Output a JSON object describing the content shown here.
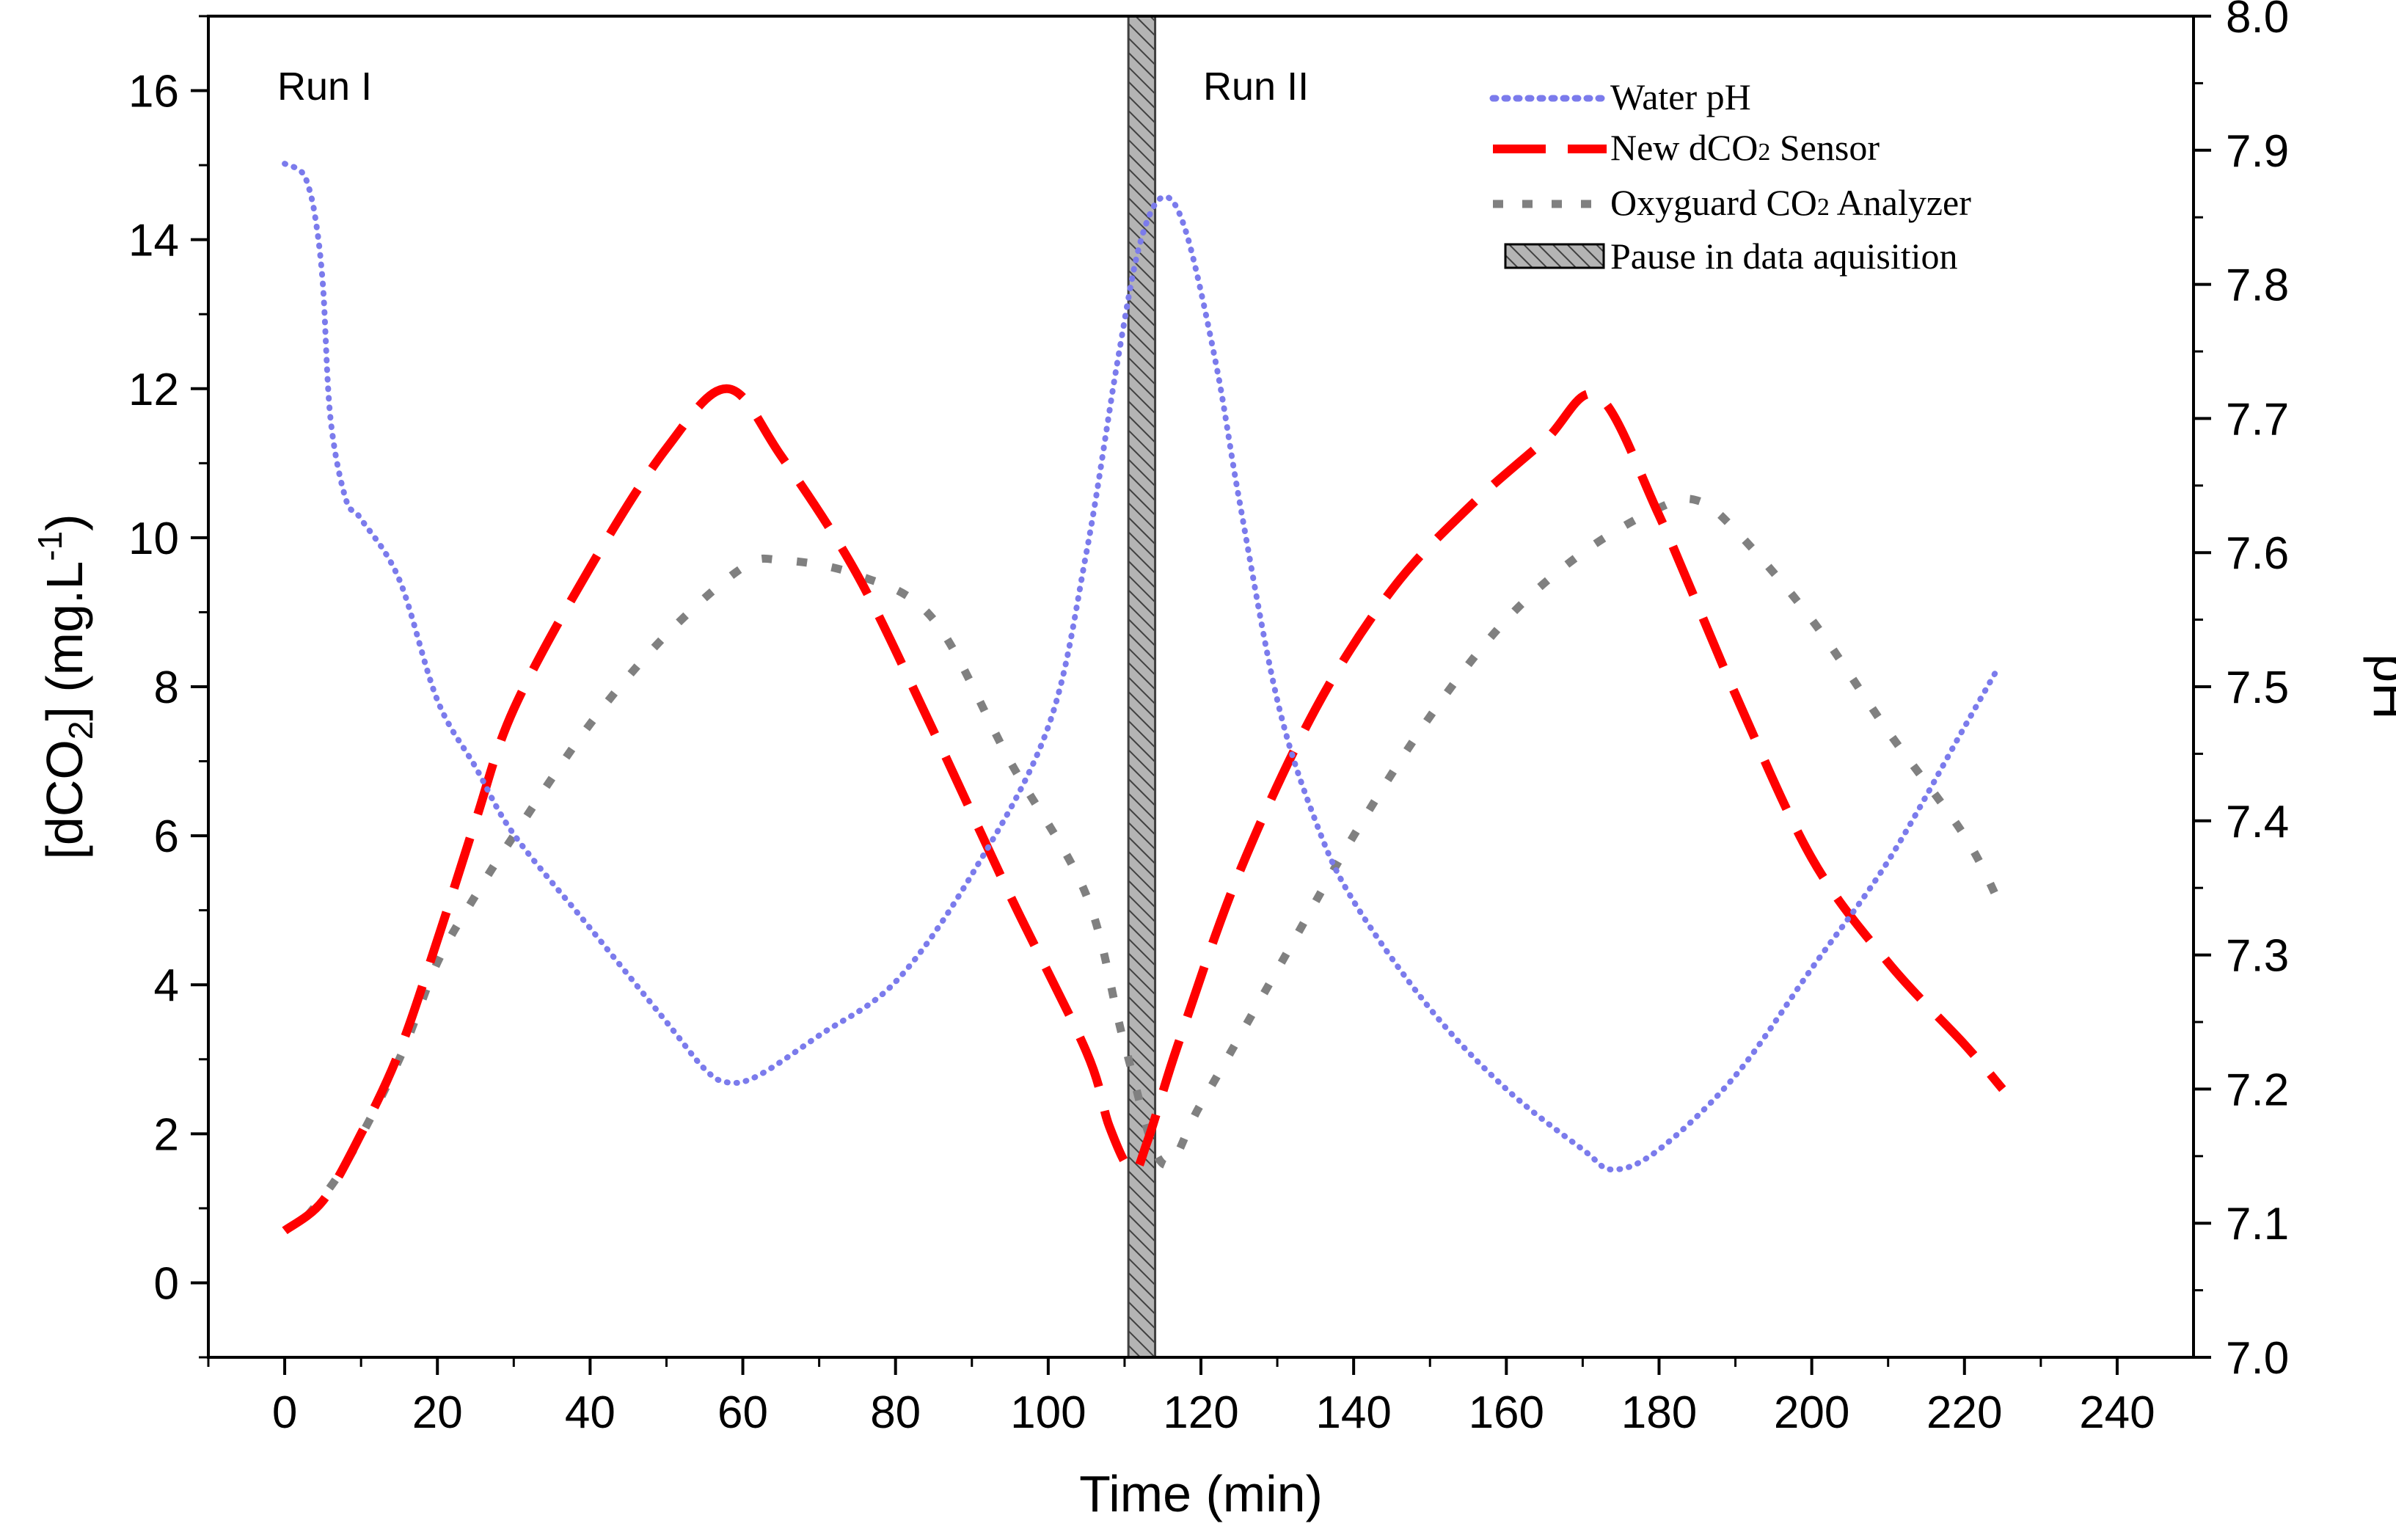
{
  "chart_data": {
    "type": "line",
    "xlabel": "Time (min)",
    "ylabel_left": {
      "pre": "[dCO",
      "sub": "2",
      "mid": "] (mg.L",
      "sup": "-1",
      "post": ")"
    },
    "ylabel_right": "pH",
    "xlim": [
      -10,
      250
    ],
    "ylim_left": [
      -1,
      17
    ],
    "ylim_right": [
      7.0,
      8.0
    ],
    "x_ticks": [
      0,
      20,
      40,
      60,
      80,
      100,
      120,
      140,
      160,
      180,
      200,
      220,
      240
    ],
    "y_left_ticks": [
      0,
      2,
      4,
      6,
      8,
      10,
      12,
      14,
      16
    ],
    "y_right_ticks": [
      "7.0",
      "7.1",
      "7.2",
      "7.3",
      "7.4",
      "7.5",
      "7.6",
      "7.7",
      "7.8",
      "7.9",
      "8.0"
    ],
    "annotations": [
      {
        "text": "Run I",
        "x": -1,
        "y": 16
      },
      {
        "text": "Run II",
        "x": 120,
        "y": 16
      }
    ],
    "pause_band": {
      "x0": 110.5,
      "x1": 114
    },
    "legend": {
      "position": "top-right",
      "items": [
        {
          "key": "ph",
          "label": "Water pH"
        },
        {
          "key": "sensor",
          "label_pre": "New dCO",
          "label_sub": "2",
          "label_post": " Sensor"
        },
        {
          "key": "oxy",
          "label_pre": "Oxyguard CO",
          "label_sub": "2",
          "label_post": " Analyzer"
        },
        {
          "key": "pause",
          "label": "Pause in data aquisition"
        }
      ]
    },
    "series": [
      {
        "name": "Water pH",
        "axis": "right",
        "color": "#7b7bec",
        "style": "dotted",
        "points": [
          [
            0,
            7.89
          ],
          [
            2,
            7.885
          ],
          [
            3,
            7.875
          ],
          [
            4,
            7.85
          ],
          [
            5,
            7.8
          ],
          [
            6,
            7.7
          ],
          [
            8,
            7.64
          ],
          [
            10,
            7.625
          ],
          [
            15,
            7.58
          ],
          [
            20,
            7.49
          ],
          [
            25,
            7.44
          ],
          [
            30,
            7.39
          ],
          [
            40,
            7.32
          ],
          [
            50,
            7.25
          ],
          [
            55,
            7.215
          ],
          [
            58,
            7.205
          ],
          [
            62,
            7.21
          ],
          [
            70,
            7.24
          ],
          [
            80,
            7.28
          ],
          [
            90,
            7.36
          ],
          [
            100,
            7.47
          ],
          [
            105,
            7.6
          ],
          [
            109,
            7.74
          ],
          [
            112,
            7.83
          ],
          [
            115,
            7.865
          ],
          [
            118,
            7.84
          ],
          [
            122,
            7.74
          ],
          [
            125,
            7.64
          ],
          [
            130,
            7.49
          ],
          [
            135,
            7.4
          ],
          [
            140,
            7.34
          ],
          [
            150,
            7.26
          ],
          [
            160,
            7.2
          ],
          [
            170,
            7.155
          ],
          [
            174,
            7.14
          ],
          [
            180,
            7.155
          ],
          [
            190,
            7.21
          ],
          [
            200,
            7.29
          ],
          [
            210,
            7.37
          ],
          [
            220,
            7.47
          ],
          [
            224,
            7.51
          ]
        ]
      },
      {
        "name": "New dCO2 Sensor",
        "axis": "left",
        "color": "#ff0000",
        "style": "dashed",
        "points": [
          [
            0,
            0.7
          ],
          [
            5,
            1.1
          ],
          [
            10,
            2.0
          ],
          [
            15,
            3.1
          ],
          [
            20,
            4.6
          ],
          [
            25,
            6.2
          ],
          [
            30,
            7.7
          ],
          [
            40,
            9.6
          ],
          [
            50,
            11.2
          ],
          [
            58,
            12.0
          ],
          [
            65,
            11.1
          ],
          [
            75,
            9.5
          ],
          [
            85,
            7.4
          ],
          [
            95,
            5.2
          ],
          [
            105,
            3.1
          ],
          [
            108,
            2.1
          ],
          [
            111,
            1.5
          ],
          [
            113,
            1.9
          ],
          [
            117,
            3.2
          ],
          [
            125,
            5.5
          ],
          [
            135,
            7.7
          ],
          [
            145,
            9.3
          ],
          [
            155,
            10.4
          ],
          [
            165,
            11.3
          ],
          [
            172,
            11.9
          ],
          [
            180,
            10.3
          ],
          [
            190,
            7.9
          ],
          [
            200,
            5.7
          ],
          [
            210,
            4.3
          ],
          [
            220,
            3.2
          ],
          [
            225,
            2.6
          ]
        ]
      },
      {
        "name": "Oxyguard CO2 Analyzer",
        "axis": "left",
        "color": "#808080",
        "style": "dashed-short",
        "points": [
          [
            3,
            0.9
          ],
          [
            8,
            1.6
          ],
          [
            15,
            3.0
          ],
          [
            20,
            4.3
          ],
          [
            25,
            5.2
          ],
          [
            30,
            6.0
          ],
          [
            40,
            7.5
          ],
          [
            50,
            8.7
          ],
          [
            60,
            9.6
          ],
          [
            65,
            9.7
          ],
          [
            75,
            9.5
          ],
          [
            85,
            8.9
          ],
          [
            95,
            7.0
          ],
          [
            105,
            5.2
          ],
          [
            110,
            3.2
          ],
          [
            115,
            1.6
          ],
          [
            120,
            2.4
          ],
          [
            130,
            4.2
          ],
          [
            140,
            6.0
          ],
          [
            150,
            7.6
          ],
          [
            160,
            8.9
          ],
          [
            170,
            9.8
          ],
          [
            180,
            10.4
          ],
          [
            185,
            10.5
          ],
          [
            190,
            10.1
          ],
          [
            200,
            8.9
          ],
          [
            210,
            7.4
          ],
          [
            220,
            6.0
          ],
          [
            225,
            5.0
          ]
        ]
      }
    ]
  }
}
